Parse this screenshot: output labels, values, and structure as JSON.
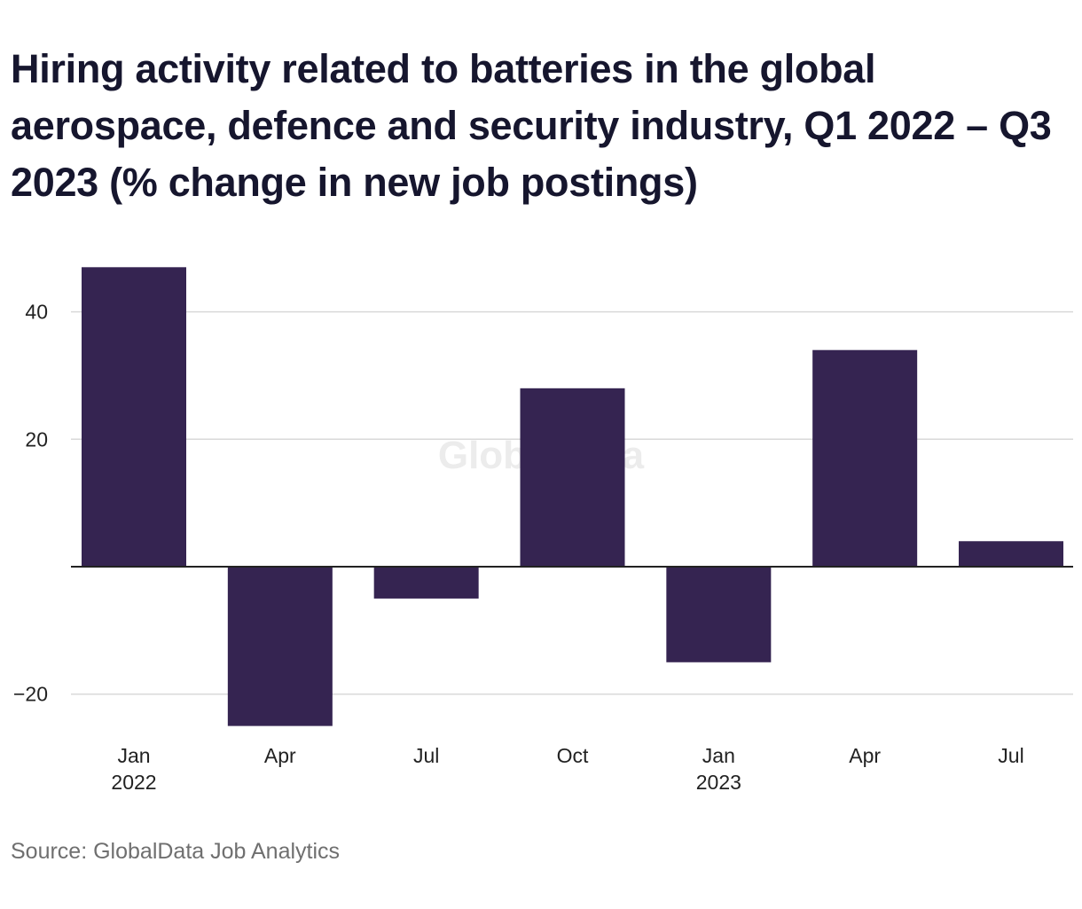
{
  "title": "Hiring activity related to batteries in the global aerospace, defence and security industry, Q1 2022 – Q3 2023 (% change in new job postings)",
  "source": "Source: GlobalData Job Analytics",
  "watermark": "GlobalData",
  "colors": {
    "bar": "#352451",
    "grid": "#d9d9d9",
    "zero_line": "#222222"
  },
  "chart_data": {
    "type": "bar",
    "title": "Hiring activity related to batteries in the global aerospace, defence and security industry, Q1 2022 – Q3 2023 (% change in new job postings)",
    "xlabel": "",
    "ylabel": "",
    "categories": [
      "Jan 2022",
      "Apr",
      "Jul",
      "Oct",
      "Jan 2023",
      "Apr",
      "Jul"
    ],
    "x_tick_labels": [
      {
        "line1": "Jan",
        "line2": "2022"
      },
      {
        "line1": "Apr",
        "line2": ""
      },
      {
        "line1": "Jul",
        "line2": ""
      },
      {
        "line1": "Oct",
        "line2": ""
      },
      {
        "line1": "Jan",
        "line2": "2023"
      },
      {
        "line1": "Apr",
        "line2": ""
      },
      {
        "line1": "Jul",
        "line2": ""
      }
    ],
    "values": [
      47,
      -25,
      -5,
      28,
      -15,
      34,
      4
    ],
    "ylim": [
      -25,
      47
    ],
    "yticks": [
      -20,
      20,
      40
    ],
    "ytick_labels": [
      "−20",
      "20",
      "40"
    ],
    "grid": true,
    "legend": "none"
  }
}
